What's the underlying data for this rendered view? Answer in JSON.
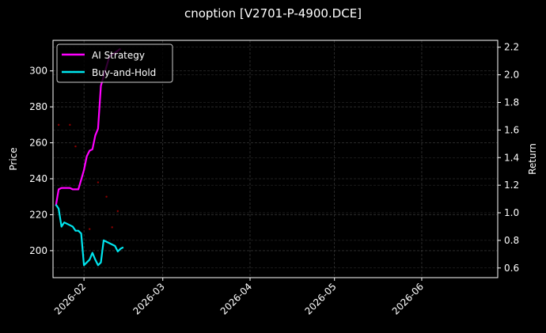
{
  "title": "cnoption [V2701-P-4900.DCE]",
  "colors": {
    "background": "#000000",
    "ai_strategy": "#ff00ff",
    "buy_and_hold": "#00e5ee",
    "markers": "#8b0000",
    "grid": "#444444",
    "axes": "#ffffff"
  },
  "chart_data": {
    "type": "line",
    "title": "cnoption [V2701-P-4900.DCE]",
    "xlabel": "",
    "ylabel": "Price",
    "ylabel_right": "Return",
    "x_ticks": [
      "2026-02",
      "2026-03",
      "2026-04",
      "2026-05",
      "2026-06"
    ],
    "y_ticks_left": [
      200,
      220,
      240,
      260,
      280,
      300
    ],
    "y_ticks_right": [
      0.6,
      0.8,
      1.0,
      1.2,
      1.4,
      1.6,
      1.8,
      2.0,
      2.2
    ],
    "ylim_left": [
      185,
      317
    ],
    "ylim_right": [
      0.53,
      2.25
    ],
    "xlim": [
      "2026-01-21",
      "2026-06-28"
    ],
    "grid": true,
    "legend_position": "upper left",
    "legend": [
      "AI Strategy",
      "Buy-and-Hold"
    ],
    "series": [
      {
        "name": "AI Strategy",
        "axis": "right",
        "color": "#ff00ff",
        "x": [
          "2026-01-22",
          "2026-01-23",
          "2026-01-24",
          "2026-01-27",
          "2026-01-28",
          "2026-01-30",
          "2026-01-31",
          "2026-02-01",
          "2026-02-02",
          "2026-02-03",
          "2026-02-04",
          "2026-02-05",
          "2026-02-06",
          "2026-02-07",
          "2026-02-08",
          "2026-02-09",
          "2026-02-10",
          "2026-02-12",
          "2026-02-14"
        ],
        "values": [
          1.05,
          1.17,
          1.18,
          1.18,
          1.17,
          1.17,
          1.24,
          1.31,
          1.41,
          1.45,
          1.46,
          1.56,
          1.61,
          1.92,
          1.99,
          2.06,
          2.13,
          2.16,
          2.19
        ]
      },
      {
        "name": "Buy-and-Hold",
        "axis": "right",
        "color": "#00e5ee",
        "x": [
          "2026-01-22",
          "2026-01-23",
          "2026-01-24",
          "2026-01-25",
          "2026-01-27",
          "2026-01-28",
          "2026-01-29",
          "2026-01-30",
          "2026-01-31",
          "2026-02-01",
          "2026-02-03",
          "2026-02-04",
          "2026-02-05",
          "2026-02-06",
          "2026-02-07",
          "2026-02-08",
          "2026-02-11",
          "2026-02-12",
          "2026-02-13",
          "2026-02-14",
          "2026-02-15"
        ],
        "values": [
          1.06,
          1.03,
          0.9,
          0.93,
          0.91,
          0.9,
          0.87,
          0.87,
          0.85,
          0.62,
          0.66,
          0.71,
          0.66,
          0.62,
          0.64,
          0.8,
          0.77,
          0.76,
          0.72,
          0.74,
          0.75
        ]
      },
      {
        "name": "Trade Markers",
        "axis": "left",
        "type": "scatter",
        "color": "#8b0000",
        "x": [
          "2026-01-23",
          "2026-01-27",
          "2026-01-29",
          "2026-02-01",
          "2026-02-03",
          "2026-02-06",
          "2026-02-09",
          "2026-02-11",
          "2026-02-13"
        ],
        "values": [
          270,
          270,
          258,
          245,
          212,
          238,
          230,
          213,
          222
        ]
      }
    ]
  },
  "axes": {
    "left_label": "Price",
    "right_label": "Return"
  },
  "legend": {
    "items": [
      {
        "label": "AI Strategy",
        "color": "#ff00ff"
      },
      {
        "label": "Buy-and-Hold",
        "color": "#00e5ee"
      }
    ]
  }
}
